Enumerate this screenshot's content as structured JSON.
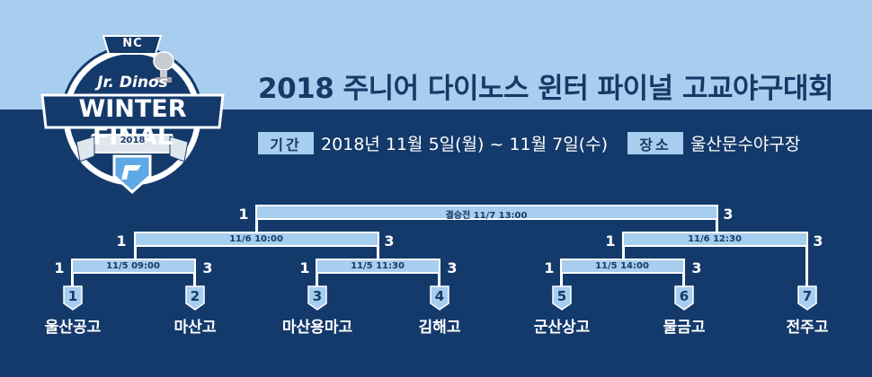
{
  "logo": {
    "brand": "NC",
    "subtitle": "Jr. Dinos",
    "title": "WINTER FINAL",
    "year": "2018"
  },
  "header": {
    "title": "2018 주니어 다이노스 윈터 파이널 고교야구대회",
    "period_label": "기간",
    "period_value": "2018년 11월 5일(월) ~ 11월 7일(수)",
    "venue_label": "장소",
    "venue_value": "울산문수야구장"
  },
  "bracket": {
    "teams": [
      {
        "seed": "1",
        "name": "울산공고"
      },
      {
        "seed": "2",
        "name": "마산고"
      },
      {
        "seed": "3",
        "name": "마산용마고"
      },
      {
        "seed": "4",
        "name": "김해고"
      },
      {
        "seed": "5",
        "name": "군산상고"
      },
      {
        "seed": "6",
        "name": "물금고"
      },
      {
        "seed": "7",
        "name": "전주고"
      }
    ],
    "matches": [
      {
        "label": "11/5 09:00",
        "left_score": "1",
        "right_score": "3"
      },
      {
        "label": "11/5 11:30",
        "left_score": "1",
        "right_score": "3"
      },
      {
        "label": "11/5 14:00",
        "left_score": "1",
        "right_score": "3"
      },
      {
        "label": "11/6 10:00",
        "left_score": "1",
        "right_score": "3"
      },
      {
        "label": "11/6 12:30",
        "left_score": "1",
        "right_score": "3"
      },
      {
        "label": "결승전  11/7 13:00",
        "left_score": "1",
        "right_score": "3"
      }
    ]
  },
  "colors": {
    "navy": "#143a6b",
    "light_blue": "#a7cdef",
    "white": "#ffffff"
  }
}
